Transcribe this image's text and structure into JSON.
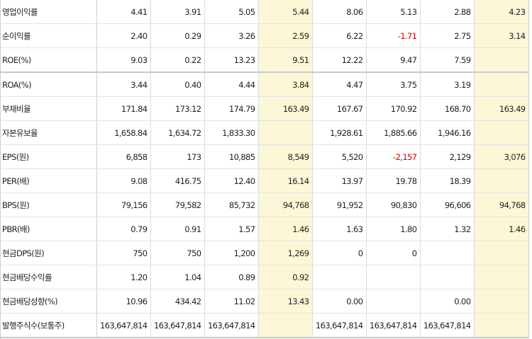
{
  "rows": [
    {
      "label": "영업이익률",
      "values": [
        "4.41",
        "3.91",
        "5.05",
        "5.44",
        "8.06",
        "5.13",
        "2.88",
        "4.23"
      ]
    },
    {
      "label": "순이익률",
      "values": [
        "2.40",
        "0.29",
        "3.26",
        "2.59",
        "6.22",
        "-1.71",
        "2.75",
        "3.14"
      ]
    },
    {
      "label": "ROE(%)",
      "values": [
        "9.03",
        "0.22",
        "13.23",
        "9.51",
        "12.22",
        "9.47",
        "7.59",
        ""
      ]
    },
    {
      "label": "ROA(%)",
      "values": [
        "3.44",
        "0.40",
        "4.44",
        "3.84",
        "4.47",
        "3.75",
        "3.19",
        ""
      ]
    },
    {
      "label": "부채비율",
      "values": [
        "171.84",
        "173.12",
        "174.79",
        "163.49",
        "167.67",
        "170.92",
        "168.70",
        "163.49"
      ]
    },
    {
      "label": "자본유보율",
      "values": [
        "1,658.84",
        "1,634.72",
        "1,833.30",
        "",
        "1,928.61",
        "1,885.66",
        "1,946.16",
        ""
      ]
    },
    {
      "label": "EPS(원)",
      "values": [
        "6,858",
        "173",
        "10,885",
        "8,549",
        "5,520",
        "-2,157",
        "2,129",
        "3,076"
      ]
    },
    {
      "label": "PER(배)",
      "values": [
        "9.08",
        "416.75",
        "12.40",
        "16.14",
        "13.97",
        "19.78",
        "18.39",
        ""
      ]
    },
    {
      "label": "BPS(원)",
      "values": [
        "79,156",
        "79,582",
        "85,732",
        "94,768",
        "91,952",
        "90,830",
        "96,606",
        "94,768"
      ]
    },
    {
      "label": "PBR(배)",
      "values": [
        "0.79",
        "0.91",
        "1.57",
        "1.46",
        "1.63",
        "1.80",
        "1.32",
        "1.46"
      ]
    },
    {
      "label": "현금DPS(원)",
      "values": [
        "750",
        "750",
        "1,200",
        "1,269",
        "0",
        "0",
        "",
        ""
      ]
    },
    {
      "label": "현금배당수익률",
      "values": [
        "1.20",
        "1.04",
        "0.89",
        "0.92",
        "",
        "",
        "",
        ""
      ]
    },
    {
      "label": "현금배당성향(%)",
      "values": [
        "10.96",
        "434.42",
        "11.02",
        "13.43",
        "0.00",
        "",
        "0.00",
        ""
      ]
    },
    {
      "label": "발행주식수(보통주)",
      "values": [
        "163,647,814",
        "163,647,814",
        "163,647,814",
        "",
        "163,647,814",
        "163,647,814",
        "163,647,814",
        ""
      ]
    }
  ],
  "highlight_columns": [
    3,
    7
  ],
  "colors": {
    "highlight": "#fcf7d6",
    "negative": "#d40000"
  }
}
